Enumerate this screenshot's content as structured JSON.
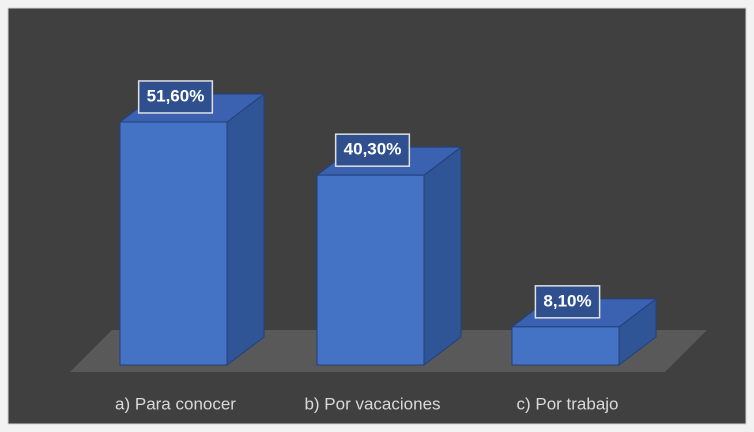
{
  "chart_data": {
    "type": "bar3d",
    "categories": [
      "a) Para conocer",
      "b) Por vacaciones",
      "c) Por trabajo"
    ],
    "values": [
      51.6,
      40.3,
      8.1
    ],
    "value_labels": [
      "51,60%",
      "40,30%",
      "8,10%"
    ],
    "color": "#4472c4"
  }
}
